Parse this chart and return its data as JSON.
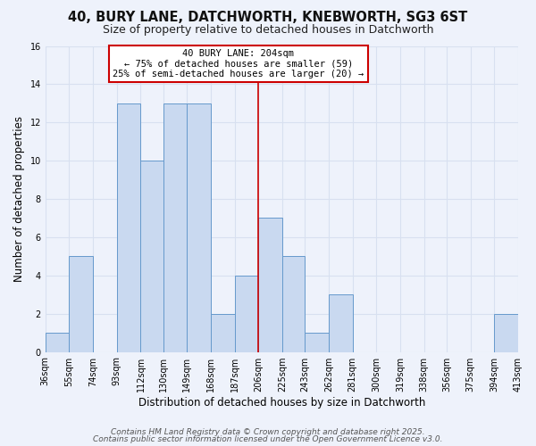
{
  "title1": "40, BURY LANE, DATCHWORTH, KNEBWORTH, SG3 6ST",
  "title2": "Size of property relative to detached houses in Datchworth",
  "xlabel": "Distribution of detached houses by size in Datchworth",
  "ylabel": "Number of detached properties",
  "bin_edges": [
    36,
    55,
    74,
    93,
    112,
    130,
    149,
    168,
    187,
    206,
    225,
    243,
    262,
    281,
    300,
    319,
    338,
    356,
    375,
    394,
    413
  ],
  "bin_labels": [
    "36sqm",
    "55sqm",
    "74sqm",
    "93sqm",
    "112sqm",
    "130sqm",
    "149sqm",
    "168sqm",
    "187sqm",
    "206sqm",
    "225sqm",
    "243sqm",
    "262sqm",
    "281sqm",
    "300sqm",
    "319sqm",
    "338sqm",
    "356sqm",
    "375sqm",
    "394sqm",
    "413sqm"
  ],
  "counts": [
    1,
    5,
    0,
    13,
    10,
    13,
    13,
    2,
    4,
    7,
    5,
    1,
    3,
    0,
    0,
    0,
    0,
    0,
    0,
    2
  ],
  "bar_color": "#c9d9f0",
  "bar_edge_color": "#6699cc",
  "vline_x": 206,
  "vline_color": "#cc0000",
  "annotation_title": "40 BURY LANE: 204sqm",
  "annotation_line1": "← 75% of detached houses are smaller (59)",
  "annotation_line2": "25% of semi-detached houses are larger (20) →",
  "annotation_box_color": "#ffffff",
  "annotation_box_edge": "#cc0000",
  "ylim": [
    0,
    16
  ],
  "yticks": [
    0,
    2,
    4,
    6,
    8,
    10,
    12,
    14,
    16
  ],
  "footer1": "Contains HM Land Registry data © Crown copyright and database right 2025.",
  "footer2": "Contains public sector information licensed under the Open Government Licence v3.0.",
  "background_color": "#eef2fb",
  "grid_color": "#d8e0f0",
  "title_fontsize": 10.5,
  "subtitle_fontsize": 9,
  "axis_label_fontsize": 8.5,
  "tick_fontsize": 7,
  "annotation_fontsize": 7.5,
  "footer_fontsize": 6.5
}
